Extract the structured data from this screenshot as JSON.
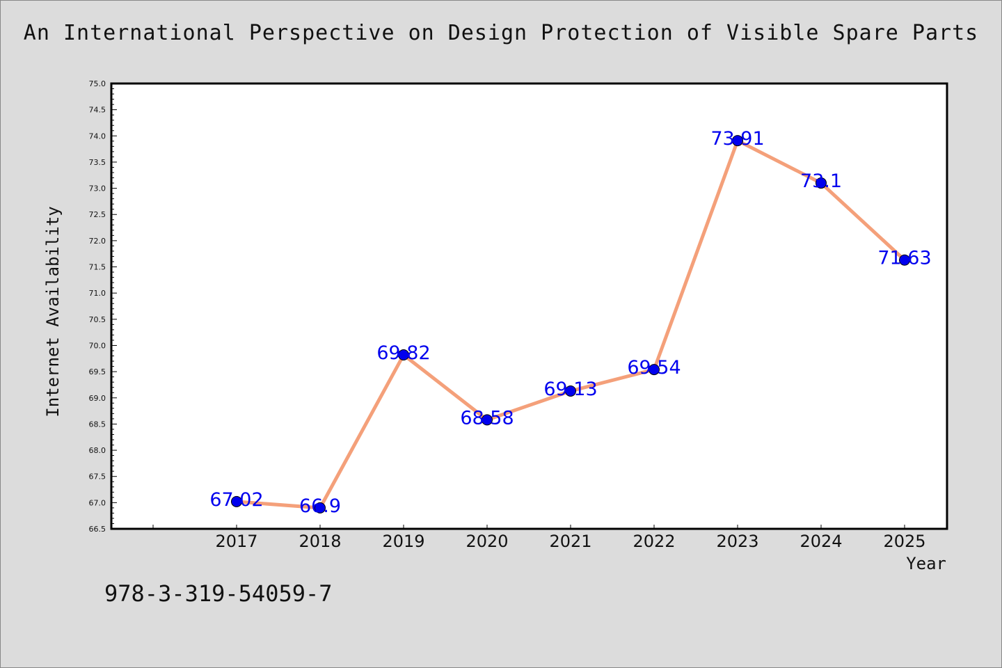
{
  "chart_data": {
    "type": "line",
    "title": "An International Perspective on Design Protection of Visible Spare Parts",
    "xlabel": "Year",
    "ylabel": "Internet Availability",
    "x": [
      "2017",
      "2018",
      "2019",
      "2020",
      "2021",
      "2022",
      "2023",
      "2024",
      "2025"
    ],
    "values": [
      67.02,
      66.9,
      69.82,
      68.58,
      69.13,
      69.54,
      73.91,
      73.1,
      71.63
    ],
    "data_labels": [
      "67.02",
      "66.9",
      "69.82",
      "68.58",
      "69.13",
      "69.54",
      "73.91",
      "73.1",
      "71.63"
    ],
    "ylim": [
      66.5,
      75.0
    ],
    "y_ticks": [
      "66.5",
      "67.0",
      "67.5",
      "68.0",
      "68.5",
      "69.0",
      "69.5",
      "70.0",
      "70.5",
      "71.0",
      "71.5",
      "72.0",
      "72.5",
      "73.0",
      "73.5",
      "74.0",
      "74.5",
      "75.0"
    ],
    "grid": false,
    "line_color": "#f4a07a",
    "marker_color": "#0000ee",
    "label_color": "#0000ee"
  },
  "footnote": "978-3-319-54059-7"
}
